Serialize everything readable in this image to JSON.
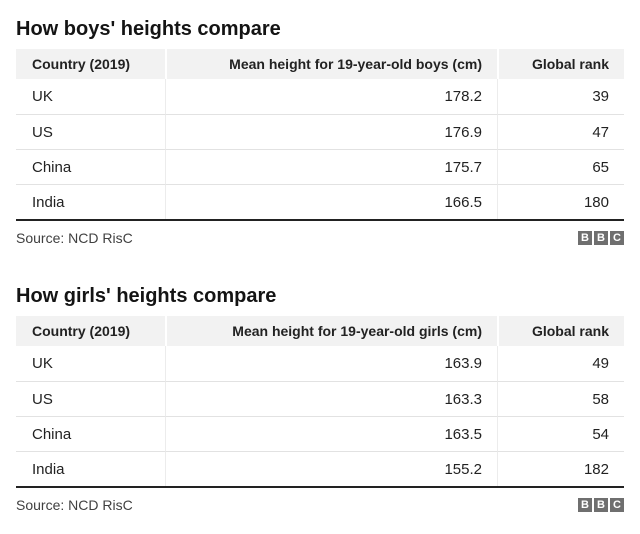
{
  "colors": {
    "header_bg": "#f2f2f2",
    "row_divider": "#e2e2e2",
    "table_bottom_rule": "#222222",
    "title_text": "#141414",
    "body_text": "#222222",
    "source_text": "#404040",
    "bbc_logo_bg": "#6f6f6f"
  },
  "logo": {
    "letters": [
      "B",
      "B",
      "C"
    ]
  },
  "sections": [
    {
      "title": "How boys' heights compare",
      "source": "Source: NCD RisC",
      "table": {
        "columns": [
          "Country (2019)",
          "Mean height for 19-year-old boys (cm)",
          "Global rank"
        ],
        "rows": [
          [
            "UK",
            "178.2",
            "39"
          ],
          [
            "US",
            "176.9",
            "47"
          ],
          [
            "China",
            "175.7",
            "65"
          ],
          [
            "India",
            "166.5",
            "180"
          ]
        ]
      }
    },
    {
      "title": "How girls' heights compare",
      "source": "Source: NCD RisC",
      "table": {
        "columns": [
          "Country (2019)",
          "Mean height for 19-year-old girls (cm)",
          "Global rank"
        ],
        "rows": [
          [
            "UK",
            "163.9",
            "49"
          ],
          [
            "US",
            "163.3",
            "58"
          ],
          [
            "China",
            "163.5",
            "54"
          ],
          [
            "India",
            "155.2",
            "182"
          ]
        ]
      }
    }
  ],
  "chart_data": [
    {
      "type": "table",
      "title": "How boys' heights compare",
      "columns": [
        "Country (2019)",
        "Mean height for 19-year-old boys (cm)",
        "Global rank"
      ],
      "rows": [
        [
          "UK",
          178.2,
          39
        ],
        [
          "US",
          176.9,
          47
        ],
        [
          "China",
          175.7,
          65
        ],
        [
          "India",
          166.5,
          180
        ]
      ],
      "source": "Source: NCD RisC"
    },
    {
      "type": "table",
      "title": "How girls' heights compare",
      "columns": [
        "Country (2019)",
        "Mean height for 19-year-old girls (cm)",
        "Global rank"
      ],
      "rows": [
        [
          "UK",
          163.9,
          49
        ],
        [
          "US",
          163.3,
          58
        ],
        [
          "China",
          163.5,
          54
        ],
        [
          "India",
          155.2,
          182
        ]
      ],
      "source": "Source: NCD RisC"
    }
  ]
}
